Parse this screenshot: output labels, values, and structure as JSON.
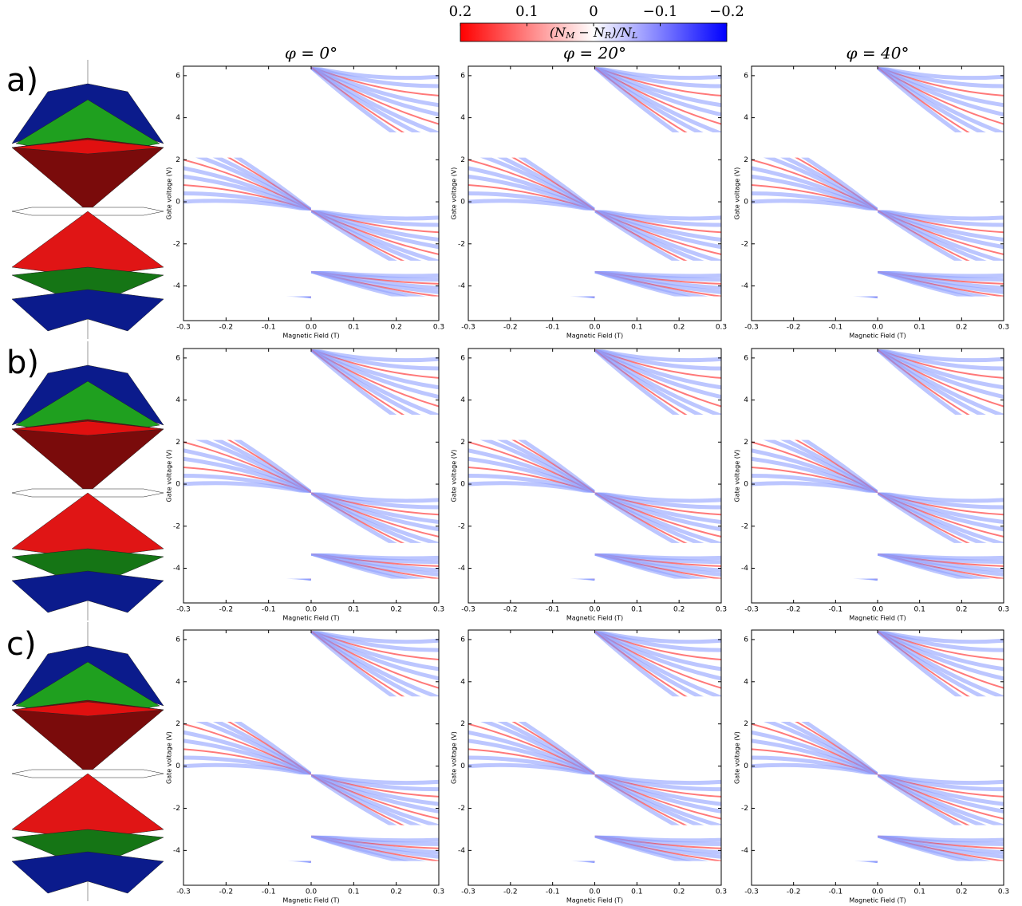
{
  "figure": {
    "colorbar": {
      "label": [
        "(N",
        "M",
        " − N",
        "R",
        ")/N",
        "L"
      ],
      "lim": [
        0.2,
        -0.2
      ],
      "ticks": [
        0.2,
        0.1,
        0,
        {
          "value": -0.1,
          "label": "−0.1"
        },
        {
          "value": -0.2,
          "label": "−0.2"
        }
      ],
      "colormap": [
        "#ff0000",
        "#ffffff",
        "#0000ff"
      ]
    },
    "column_titles": [
      "φ = 0°",
      "φ = 20°",
      "φ = 40°"
    ],
    "row_labels": [
      "a)",
      "b)",
      "c)"
    ]
  },
  "chart_data": [
    {
      "type": "heatmap",
      "x_label": "Magnetic Field (T)",
      "y_label": "Gate voltage (V)",
      "xlim": [
        -0.3,
        0.3
      ],
      "ylim": [
        -5.65,
        6.45
      ],
      "xticks": [
        -0.3,
        -0.2,
        -0.1,
        {
          "value": 0,
          "label": "0.0"
        },
        0.1,
        0.2,
        0.3
      ],
      "yticks": [
        -4,
        -2,
        0,
        2,
        4,
        6
      ]
    },
    {
      "type": "heatmap",
      "x_label": "Magnetic Field (T)",
      "y_label": "Gate voltage (V)",
      "xlim": [
        -0.3,
        0.3
      ],
      "ylim": [
        -5.65,
        6.45
      ],
      "xticks": [
        -0.3,
        -0.2,
        -0.1,
        {
          "value": 0,
          "label": "0.0"
        },
        0.1,
        0.2,
        0.3
      ],
      "yticks": [
        -4,
        -2,
        0,
        2,
        4,
        6
      ]
    },
    {
      "type": "heatmap",
      "x_label": "Magnetic Field (T)",
      "y_label": "Gate voltage (V)",
      "xlim": [
        -0.3,
        0.3
      ],
      "ylim": [
        -5.65,
        6.45
      ],
      "xticks": [
        -0.3,
        -0.2,
        -0.1,
        {
          "value": 0,
          "label": "0.0"
        },
        0.1,
        0.2,
        0.3
      ],
      "yticks": [
        -4,
        -2,
        0,
        2,
        4,
        6
      ]
    },
    {
      "type": "heatmap",
      "x_label": "Magnetic Field (T)",
      "y_label": "Gate voltage (V)",
      "xlim": [
        -0.3,
        0.3
      ],
      "ylim": [
        -5.65,
        6.45
      ],
      "xticks": [
        -0.3,
        -0.2,
        -0.1,
        {
          "value": 0,
          "label": "0.0"
        },
        0.1,
        0.2,
        0.3
      ],
      "yticks": [
        -4,
        -2,
        0,
        2,
        4,
        6
      ]
    },
    {
      "type": "heatmap",
      "x_label": "Magnetic Field (T)",
      "y_label": "Gate voltage (V)",
      "xlim": [
        -0.3,
        0.3
      ],
      "ylim": [
        -5.65,
        6.45
      ],
      "xticks": [
        -0.3,
        -0.2,
        -0.1,
        {
          "value": 0,
          "label": "0.0"
        },
        0.1,
        0.2,
        0.3
      ],
      "yticks": [
        -4,
        -2,
        0,
        2,
        4,
        6
      ]
    },
    {
      "type": "heatmap",
      "x_label": "Magnetic Field (T)",
      "y_label": "Gate voltage (V)",
      "xlim": [
        -0.3,
        0.3
      ],
      "ylim": [
        -5.65,
        6.45
      ],
      "xticks": [
        -0.3,
        -0.2,
        -0.1,
        {
          "value": 0,
          "label": "0.0"
        },
        0.1,
        0.2,
        0.3
      ],
      "yticks": [
        -4,
        -2,
        0,
        2,
        4,
        6
      ]
    },
    {
      "type": "heatmap",
      "x_label": "Magnetic Field (T)",
      "y_label": "Gate voltage (V)",
      "xlim": [
        -0.3,
        0.3
      ],
      "ylim": [
        -5.65,
        6.45
      ],
      "xticks": [
        -0.3,
        -0.2,
        -0.1,
        {
          "value": 0,
          "label": "0.0"
        },
        0.1,
        0.2,
        0.3
      ],
      "yticks": [
        -4,
        -2,
        0,
        2,
        4,
        6
      ]
    },
    {
      "type": "heatmap",
      "x_label": "Magnetic Field (T)",
      "y_label": "Gate voltage (V)",
      "xlim": [
        -0.3,
        0.3
      ],
      "ylim": [
        -5.65,
        6.45
      ],
      "xticks": [
        -0.3,
        -0.2,
        -0.1,
        {
          "value": 0,
          "label": "0.0"
        },
        0.1,
        0.2,
        0.3
      ],
      "yticks": [
        -4,
        -2,
        0,
        2,
        4,
        6
      ]
    },
    {
      "type": "heatmap",
      "x_label": "Magnetic Field (T)",
      "y_label": "Gate voltage (V)",
      "xlim": [
        -0.3,
        0.3
      ],
      "ylim": [
        -5.65,
        6.45
      ],
      "xticks": [
        -0.3,
        -0.2,
        -0.1,
        {
          "value": 0,
          "label": "0.0"
        },
        0.1,
        0.2,
        0.3
      ],
      "yticks": [
        -4,
        -2,
        0,
        2,
        4,
        6
      ]
    }
  ]
}
